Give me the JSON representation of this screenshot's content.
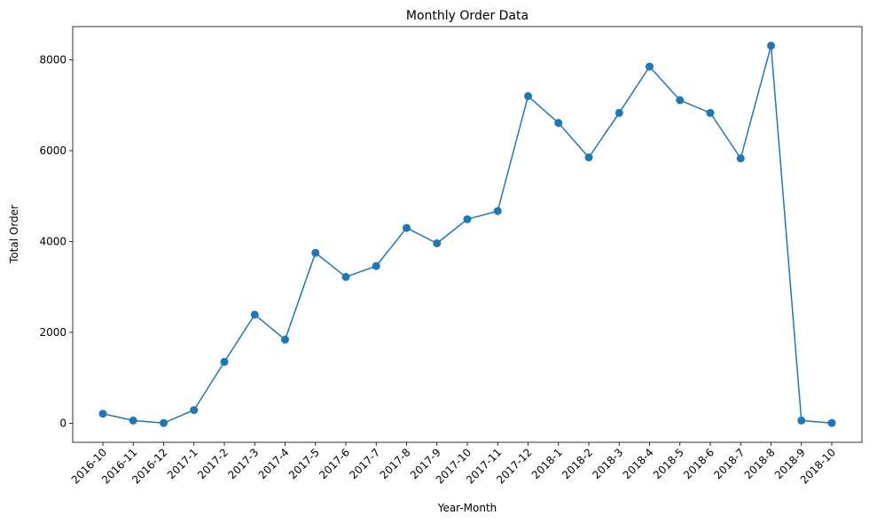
{
  "chart_data": {
    "type": "line",
    "title": "Monthly Order Data",
    "xlabel": "Year-Month",
    "ylabel": "Total Order",
    "categories": [
      "2016-10",
      "2016-11",
      "2016-12",
      "2017-1",
      "2017-2",
      "2017-3",
      "2017-4",
      "2017-5",
      "2017-6",
      "2017-7",
      "2017-8",
      "2017-9",
      "2017-10",
      "2017-11",
      "2017-12",
      "2018-1",
      "2018-2",
      "2018-3",
      "2018-4",
      "2018-5",
      "2018-6",
      "2018-7",
      "2018-8",
      "2018-9",
      "2018-10"
    ],
    "series": [
      {
        "values": [
          210,
          60,
          5,
          290,
          1350,
          2390,
          1840,
          3750,
          3220,
          3460,
          4300,
          3960,
          4490,
          4670,
          7200,
          6610,
          5850,
          6830,
          7850,
          7110,
          6830,
          5830,
          8310,
          60,
          5
        ],
        "color": "#1f77b4",
        "marker": "circle"
      }
    ],
    "ylim": [
      -420,
      8730
    ],
    "yticks": [
      0,
      2000,
      4000,
      6000,
      8000
    ],
    "grid": false,
    "legend": "none"
  }
}
